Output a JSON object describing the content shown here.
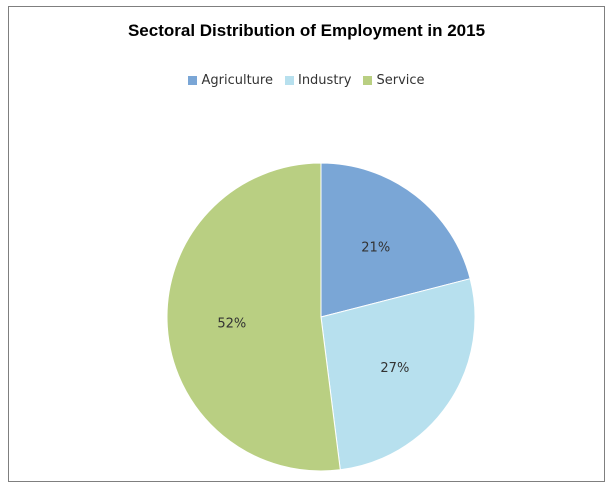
{
  "chart_data": {
    "type": "pie",
    "title": "Sectoral Distribution of Employment in 2015",
    "legend_position": "top",
    "slices": [
      {
        "name": "Agriculture",
        "value": 21,
        "label": "21%",
        "color": "#7aa6d6"
      },
      {
        "name": "Industry",
        "value": 27,
        "label": "27%",
        "color": "#b7e0ee"
      },
      {
        "name": "Service",
        "value": 52,
        "label": "52%",
        "color": "#b9cf82"
      }
    ]
  }
}
